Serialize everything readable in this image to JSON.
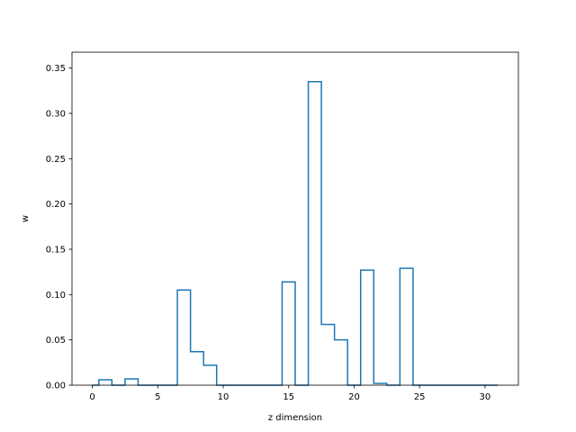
{
  "chart_data": {
    "type": "step",
    "xlabel": "z dimension",
    "ylabel": "w",
    "xlim": [
      -1.55,
      32.55
    ],
    "ylim": [
      0,
      0.3675
    ],
    "xticks": [
      0,
      5,
      10,
      15,
      20,
      25,
      30
    ],
    "xtick_labels": [
      "0",
      "5",
      "10",
      "15",
      "20",
      "25",
      "30"
    ],
    "yticks": [
      0,
      0.05,
      0.1,
      0.15,
      0.2,
      0.25,
      0.3,
      0.35
    ],
    "ytick_labels": [
      "0.00",
      "0.05",
      "0.10",
      "0.15",
      "0.20",
      "0.25",
      "0.30",
      "0.35"
    ],
    "grid": false,
    "step_where": "mid",
    "line_color": "#1f77b4",
    "x": [
      0,
      1,
      2,
      3,
      4,
      5,
      6,
      7,
      8,
      9,
      10,
      11,
      12,
      13,
      14,
      15,
      16,
      17,
      18,
      19,
      20,
      21,
      22,
      23,
      24,
      25,
      26,
      27,
      28,
      29,
      30,
      31
    ],
    "values": [
      0.0,
      0.006,
      0.0,
      0.007,
      0.0,
      0.0,
      0.0,
      0.105,
      0.037,
      0.022,
      0.0,
      0.0,
      0.0,
      0.0,
      0.0,
      0.114,
      0.0,
      0.335,
      0.067,
      0.05,
      0.0,
      0.127,
      0.002,
      0.0,
      0.129,
      0.0,
      0.0,
      0.0,
      0.0,
      0.0,
      0.0,
      0.0
    ]
  }
}
